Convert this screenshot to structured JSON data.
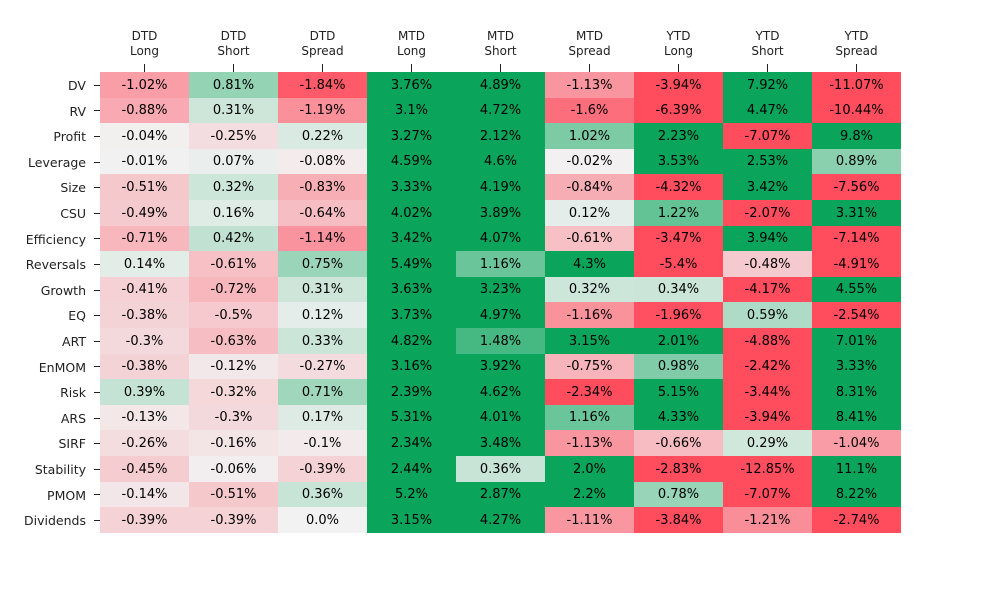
{
  "chart_data": {
    "type": "heatmap",
    "columns": [
      {
        "line1": "DTD",
        "line2": "Long"
      },
      {
        "line1": "DTD",
        "line2": "Short"
      },
      {
        "line1": "DTD",
        "line2": "Spread"
      },
      {
        "line1": "MTD",
        "line2": "Long"
      },
      {
        "line1": "MTD",
        "line2": "Short"
      },
      {
        "line1": "MTD",
        "line2": "Spread"
      },
      {
        "line1": "YTD",
        "line2": "Long"
      },
      {
        "line1": "YTD",
        "line2": "Short"
      },
      {
        "line1": "YTD",
        "line2": "Spread"
      }
    ],
    "rows": [
      {
        "label": "DV",
        "values": [
          -1.02,
          0.81,
          -1.84,
          3.76,
          4.89,
          -1.13,
          -3.94,
          7.92,
          -11.07
        ],
        "text": [
          "-1.02%",
          "0.81%",
          "-1.84%",
          "3.76%",
          "4.89%",
          "-1.13%",
          "-3.94%",
          "7.92%",
          "-11.07%"
        ]
      },
      {
        "label": "RV",
        "values": [
          -0.88,
          0.31,
          -1.19,
          3.1,
          4.72,
          -1.6,
          -6.39,
          4.47,
          -10.44
        ],
        "text": [
          "-0.88%",
          "0.31%",
          "-1.19%",
          "3.1%",
          "4.72%",
          "-1.6%",
          "-6.39%",
          "4.47%",
          "-10.44%"
        ]
      },
      {
        "label": "Profit",
        "values": [
          -0.04,
          -0.25,
          0.22,
          3.27,
          2.12,
          1.02,
          2.23,
          -7.07,
          9.8
        ],
        "text": [
          "-0.04%",
          "-0.25%",
          "0.22%",
          "3.27%",
          "2.12%",
          "1.02%",
          "2.23%",
          "-7.07%",
          "9.8%"
        ]
      },
      {
        "label": "Leverage",
        "values": [
          -0.01,
          0.07,
          -0.08,
          4.59,
          4.6,
          -0.02,
          3.53,
          2.53,
          0.89
        ],
        "text": [
          "-0.01%",
          "0.07%",
          "-0.08%",
          "4.59%",
          "4.6%",
          "-0.02%",
          "3.53%",
          "2.53%",
          "0.89%"
        ]
      },
      {
        "label": "Size",
        "values": [
          -0.51,
          0.32,
          -0.83,
          3.33,
          4.19,
          -0.84,
          -4.32,
          3.42,
          -7.56
        ],
        "text": [
          "-0.51%",
          "0.32%",
          "-0.83%",
          "3.33%",
          "4.19%",
          "-0.84%",
          "-4.32%",
          "3.42%",
          "-7.56%"
        ]
      },
      {
        "label": "CSU",
        "values": [
          -0.49,
          0.16,
          -0.64,
          4.02,
          3.89,
          0.12,
          1.22,
          -2.07,
          3.31
        ],
        "text": [
          "-0.49%",
          "0.16%",
          "-0.64%",
          "4.02%",
          "3.89%",
          "0.12%",
          "1.22%",
          "-2.07%",
          "3.31%"
        ]
      },
      {
        "label": "Efficiency",
        "values": [
          -0.71,
          0.42,
          -1.14,
          3.42,
          4.07,
          -0.61,
          -3.47,
          3.94,
          -7.14
        ],
        "text": [
          "-0.71%",
          "0.42%",
          "-1.14%",
          "3.42%",
          "4.07%",
          "-0.61%",
          "-3.47%",
          "3.94%",
          "-7.14%"
        ]
      },
      {
        "label": "Reversals",
        "values": [
          0.14,
          -0.61,
          0.75,
          5.49,
          1.16,
          4.3,
          -5.4,
          -0.48,
          -4.91
        ],
        "text": [
          "0.14%",
          "-0.61%",
          "0.75%",
          "5.49%",
          "1.16%",
          "4.3%",
          "-5.4%",
          "-0.48%",
          "-4.91%"
        ]
      },
      {
        "label": "Growth",
        "values": [
          -0.41,
          -0.72,
          0.31,
          3.63,
          3.23,
          0.32,
          0.34,
          -4.17,
          4.55
        ],
        "text": [
          "-0.41%",
          "-0.72%",
          "0.31%",
          "3.63%",
          "3.23%",
          "0.32%",
          "0.34%",
          "-4.17%",
          "4.55%"
        ]
      },
      {
        "label": "EQ",
        "values": [
          -0.38,
          -0.5,
          0.12,
          3.73,
          4.97,
          -1.16,
          -1.96,
          0.59,
          -2.54
        ],
        "text": [
          "-0.38%",
          "-0.5%",
          "0.12%",
          "3.73%",
          "4.97%",
          "-1.16%",
          "-1.96%",
          "0.59%",
          "-2.54%"
        ]
      },
      {
        "label": "ART",
        "values": [
          -0.3,
          -0.63,
          0.33,
          4.82,
          1.48,
          3.15,
          2.01,
          -4.88,
          7.01
        ],
        "text": [
          "-0.3%",
          "-0.63%",
          "0.33%",
          "4.82%",
          "1.48%",
          "3.15%",
          "2.01%",
          "-4.88%",
          "7.01%"
        ]
      },
      {
        "label": "EnMOM",
        "values": [
          -0.38,
          -0.12,
          -0.27,
          3.16,
          3.92,
          -0.75,
          0.98,
          -2.42,
          3.33
        ],
        "text": [
          "-0.38%",
          "-0.12%",
          "-0.27%",
          "3.16%",
          "3.92%",
          "-0.75%",
          "0.98%",
          "-2.42%",
          "3.33%"
        ]
      },
      {
        "label": "Risk",
        "values": [
          0.39,
          -0.32,
          0.71,
          2.39,
          4.62,
          -2.34,
          5.15,
          -3.44,
          8.31
        ],
        "text": [
          "0.39%",
          "-0.32%",
          "0.71%",
          "2.39%",
          "4.62%",
          "-2.34%",
          "5.15%",
          "-3.44%",
          "8.31%"
        ]
      },
      {
        "label": "ARS",
        "values": [
          -0.13,
          -0.3,
          0.17,
          5.31,
          4.01,
          1.16,
          4.33,
          -3.94,
          8.41
        ],
        "text": [
          "-0.13%",
          "-0.3%",
          "0.17%",
          "5.31%",
          "4.01%",
          "1.16%",
          "4.33%",
          "-3.94%",
          "8.41%"
        ]
      },
      {
        "label": "SIRF",
        "values": [
          -0.26,
          -0.16,
          -0.1,
          2.34,
          3.48,
          -1.13,
          -0.66,
          0.29,
          -1.04
        ],
        "text": [
          "-0.26%",
          "-0.16%",
          "-0.1%",
          "2.34%",
          "3.48%",
          "-1.13%",
          "-0.66%",
          "0.29%",
          "-1.04%"
        ]
      },
      {
        "label": "Stability",
        "values": [
          -0.45,
          -0.06,
          -0.39,
          2.44,
          0.36,
          2.0,
          -2.83,
          -12.85,
          11.1
        ],
        "text": [
          "-0.45%",
          "-0.06%",
          "-0.39%",
          "2.44%",
          "0.36%",
          "2.0%",
          "-2.83%",
          "-12.85%",
          "11.1%"
        ]
      },
      {
        "label": "PMOM",
        "values": [
          -0.14,
          -0.51,
          0.36,
          5.2,
          2.87,
          2.2,
          0.78,
          -7.07,
          8.22
        ],
        "text": [
          "-0.14%",
          "-0.51%",
          "0.36%",
          "5.2%",
          "2.87%",
          "2.2%",
          "0.78%",
          "-7.07%",
          "8.22%"
        ]
      },
      {
        "label": "Dividends",
        "values": [
          -0.39,
          -0.39,
          0.0,
          3.15,
          4.27,
          -1.11,
          -3.84,
          -1.21,
          -2.74
        ],
        "text": [
          "-0.39%",
          "-0.39%",
          "0.0%",
          "3.15%",
          "4.27%",
          "-1.11%",
          "-3.84%",
          "-1.21%",
          "-2.74%"
        ]
      }
    ],
    "color_scale": {
      "negative": "#ff4d5e",
      "neutral": "#f2f2f2",
      "positive": "#0aa55a",
      "saturation_at": 2.0
    },
    "grid": false
  }
}
